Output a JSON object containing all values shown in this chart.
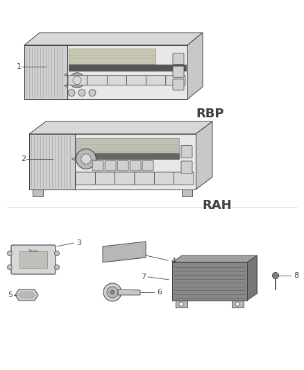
{
  "bg_color": "#ffffff",
  "line_color": "#404040",
  "rbp_text": "RBP",
  "rah_text": "RAH",
  "labels": [
    "1",
    "2",
    "3",
    "4",
    "5",
    "6",
    "7",
    "8"
  ]
}
